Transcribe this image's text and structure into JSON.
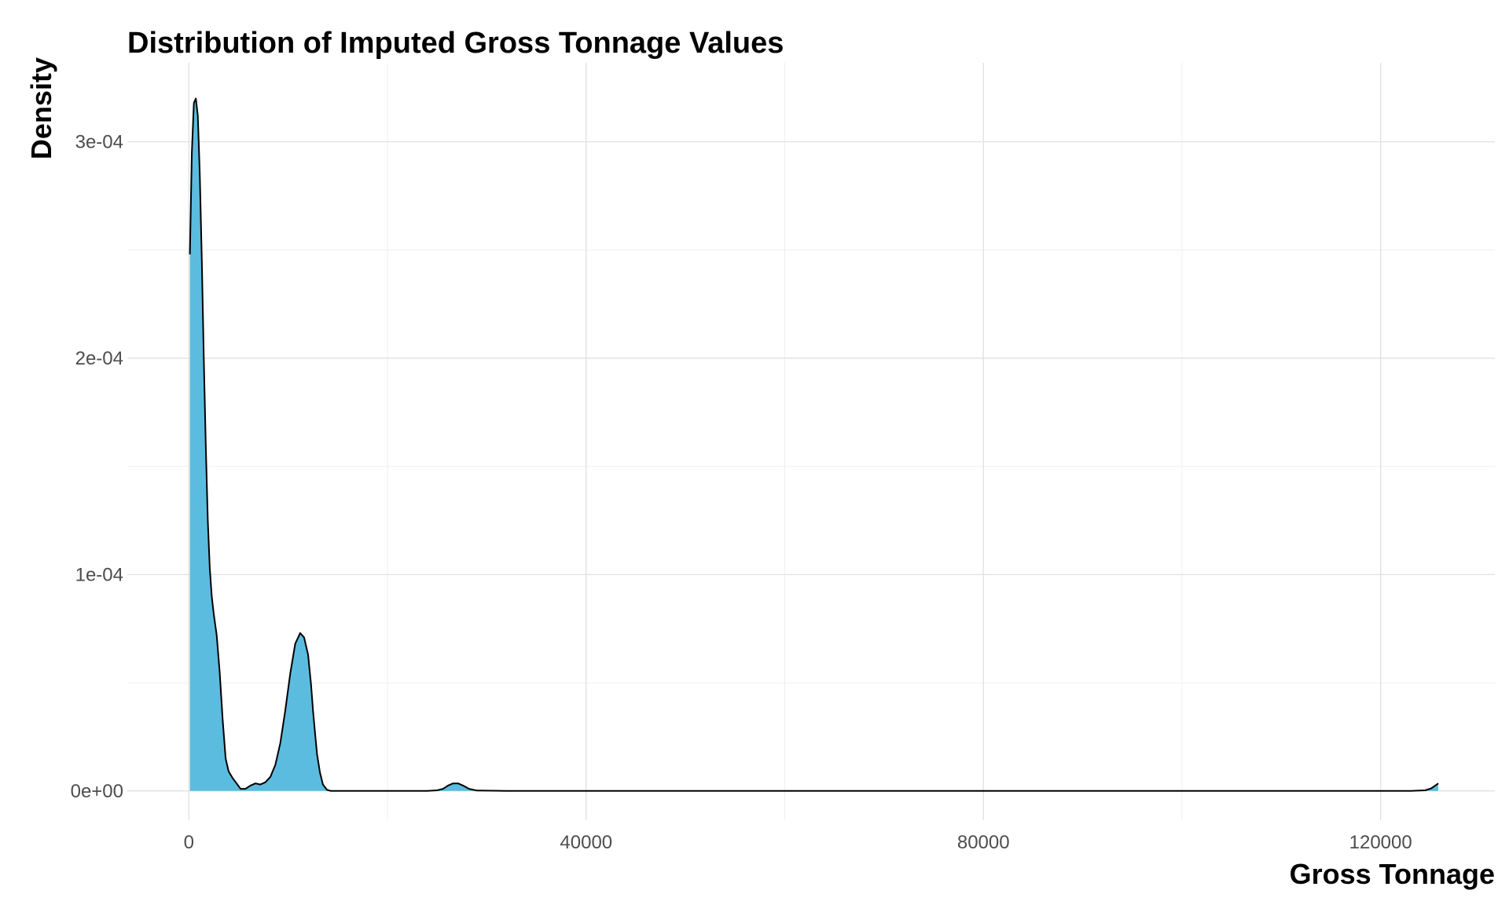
{
  "chart_data": {
    "type": "area",
    "title": "Distribution of Imputed Gross Tonnage Values",
    "xlabel": "Gross Tonnage",
    "ylabel": "Density",
    "xlim": [
      -6200,
      131500
    ],
    "ylim": [
      -1.35e-05,
      0.0003365
    ],
    "x_ticks": [
      0,
      40000,
      80000,
      120000
    ],
    "x_tick_labels": [
      "0",
      "40000",
      "80000",
      "120000"
    ],
    "x_minor": [
      20000,
      60000,
      100000
    ],
    "y_ticks": [
      0,
      0.0001,
      0.0002,
      0.0003
    ],
    "y_tick_labels": [
      "0e+00",
      "1e-04",
      "2e-04",
      "3e-04"
    ],
    "y_minor": [
      5e-05,
      0.00015,
      0.00025
    ],
    "grid": true,
    "legend": "none",
    "fill_color": "#5bbcdf",
    "line_color": "#000000",
    "series": [
      {
        "x": [
          100,
          300,
          500,
          700,
          900,
          1100,
          1300,
          1500,
          1700,
          1900,
          2100,
          2300,
          2500,
          2800,
          3100,
          3400,
          3700,
          4000,
          4400,
          4800,
          5200,
          5700,
          6200,
          6700,
          7200,
          7700,
          8200,
          8700,
          9200,
          9700,
          10200,
          10700,
          11200,
          11600,
          12000,
          12300,
          12500,
          12700,
          12900,
          13200,
          13500,
          13900,
          14300,
          14700,
          15200,
          16000,
          18000,
          20000,
          22000,
          24000,
          25000,
          25600,
          26100,
          26600,
          27100,
          27600,
          28200,
          29000,
          32000,
          40000,
          60000,
          80000,
          100000,
          110000,
          120000,
          123000,
          124500,
          125100,
          125500,
          125800
        ],
        "y": [
          0.000248,
          0.000295,
          0.000318,
          0.00032,
          0.000312,
          0.000285,
          0.000245,
          0.0002,
          0.00016,
          0.000125,
          0.000103,
          9e-05,
          8.2e-05,
          7.2e-05,
          5.5e-05,
          3.3e-05,
          1.5e-05,
          9e-06,
          6e-06,
          3.5e-06,
          1e-06,
          1e-06,
          2.5e-06,
          3.5e-06,
          3e-06,
          4e-06,
          6.5e-06,
          1.2e-05,
          2.2e-05,
          3.7e-05,
          5.4e-05,
          6.8e-05,
          7.3e-05,
          7.1e-05,
          6.3e-05,
          4.9e-05,
          3.7e-05,
          2.7e-05,
          1.7e-05,
          8.5e-06,
          3e-06,
          5e-07,
          0,
          0,
          0,
          0,
          0,
          0,
          0,
          0,
          3e-07,
          1e-06,
          2.5e-06,
          3.5e-06,
          3.5e-06,
          2.5e-06,
          1e-06,
          2e-07,
          0,
          0,
          0,
          0,
          0,
          0,
          0,
          0,
          3e-07,
          1.2e-06,
          2.5e-06,
          3.5e-06
        ]
      }
    ]
  }
}
